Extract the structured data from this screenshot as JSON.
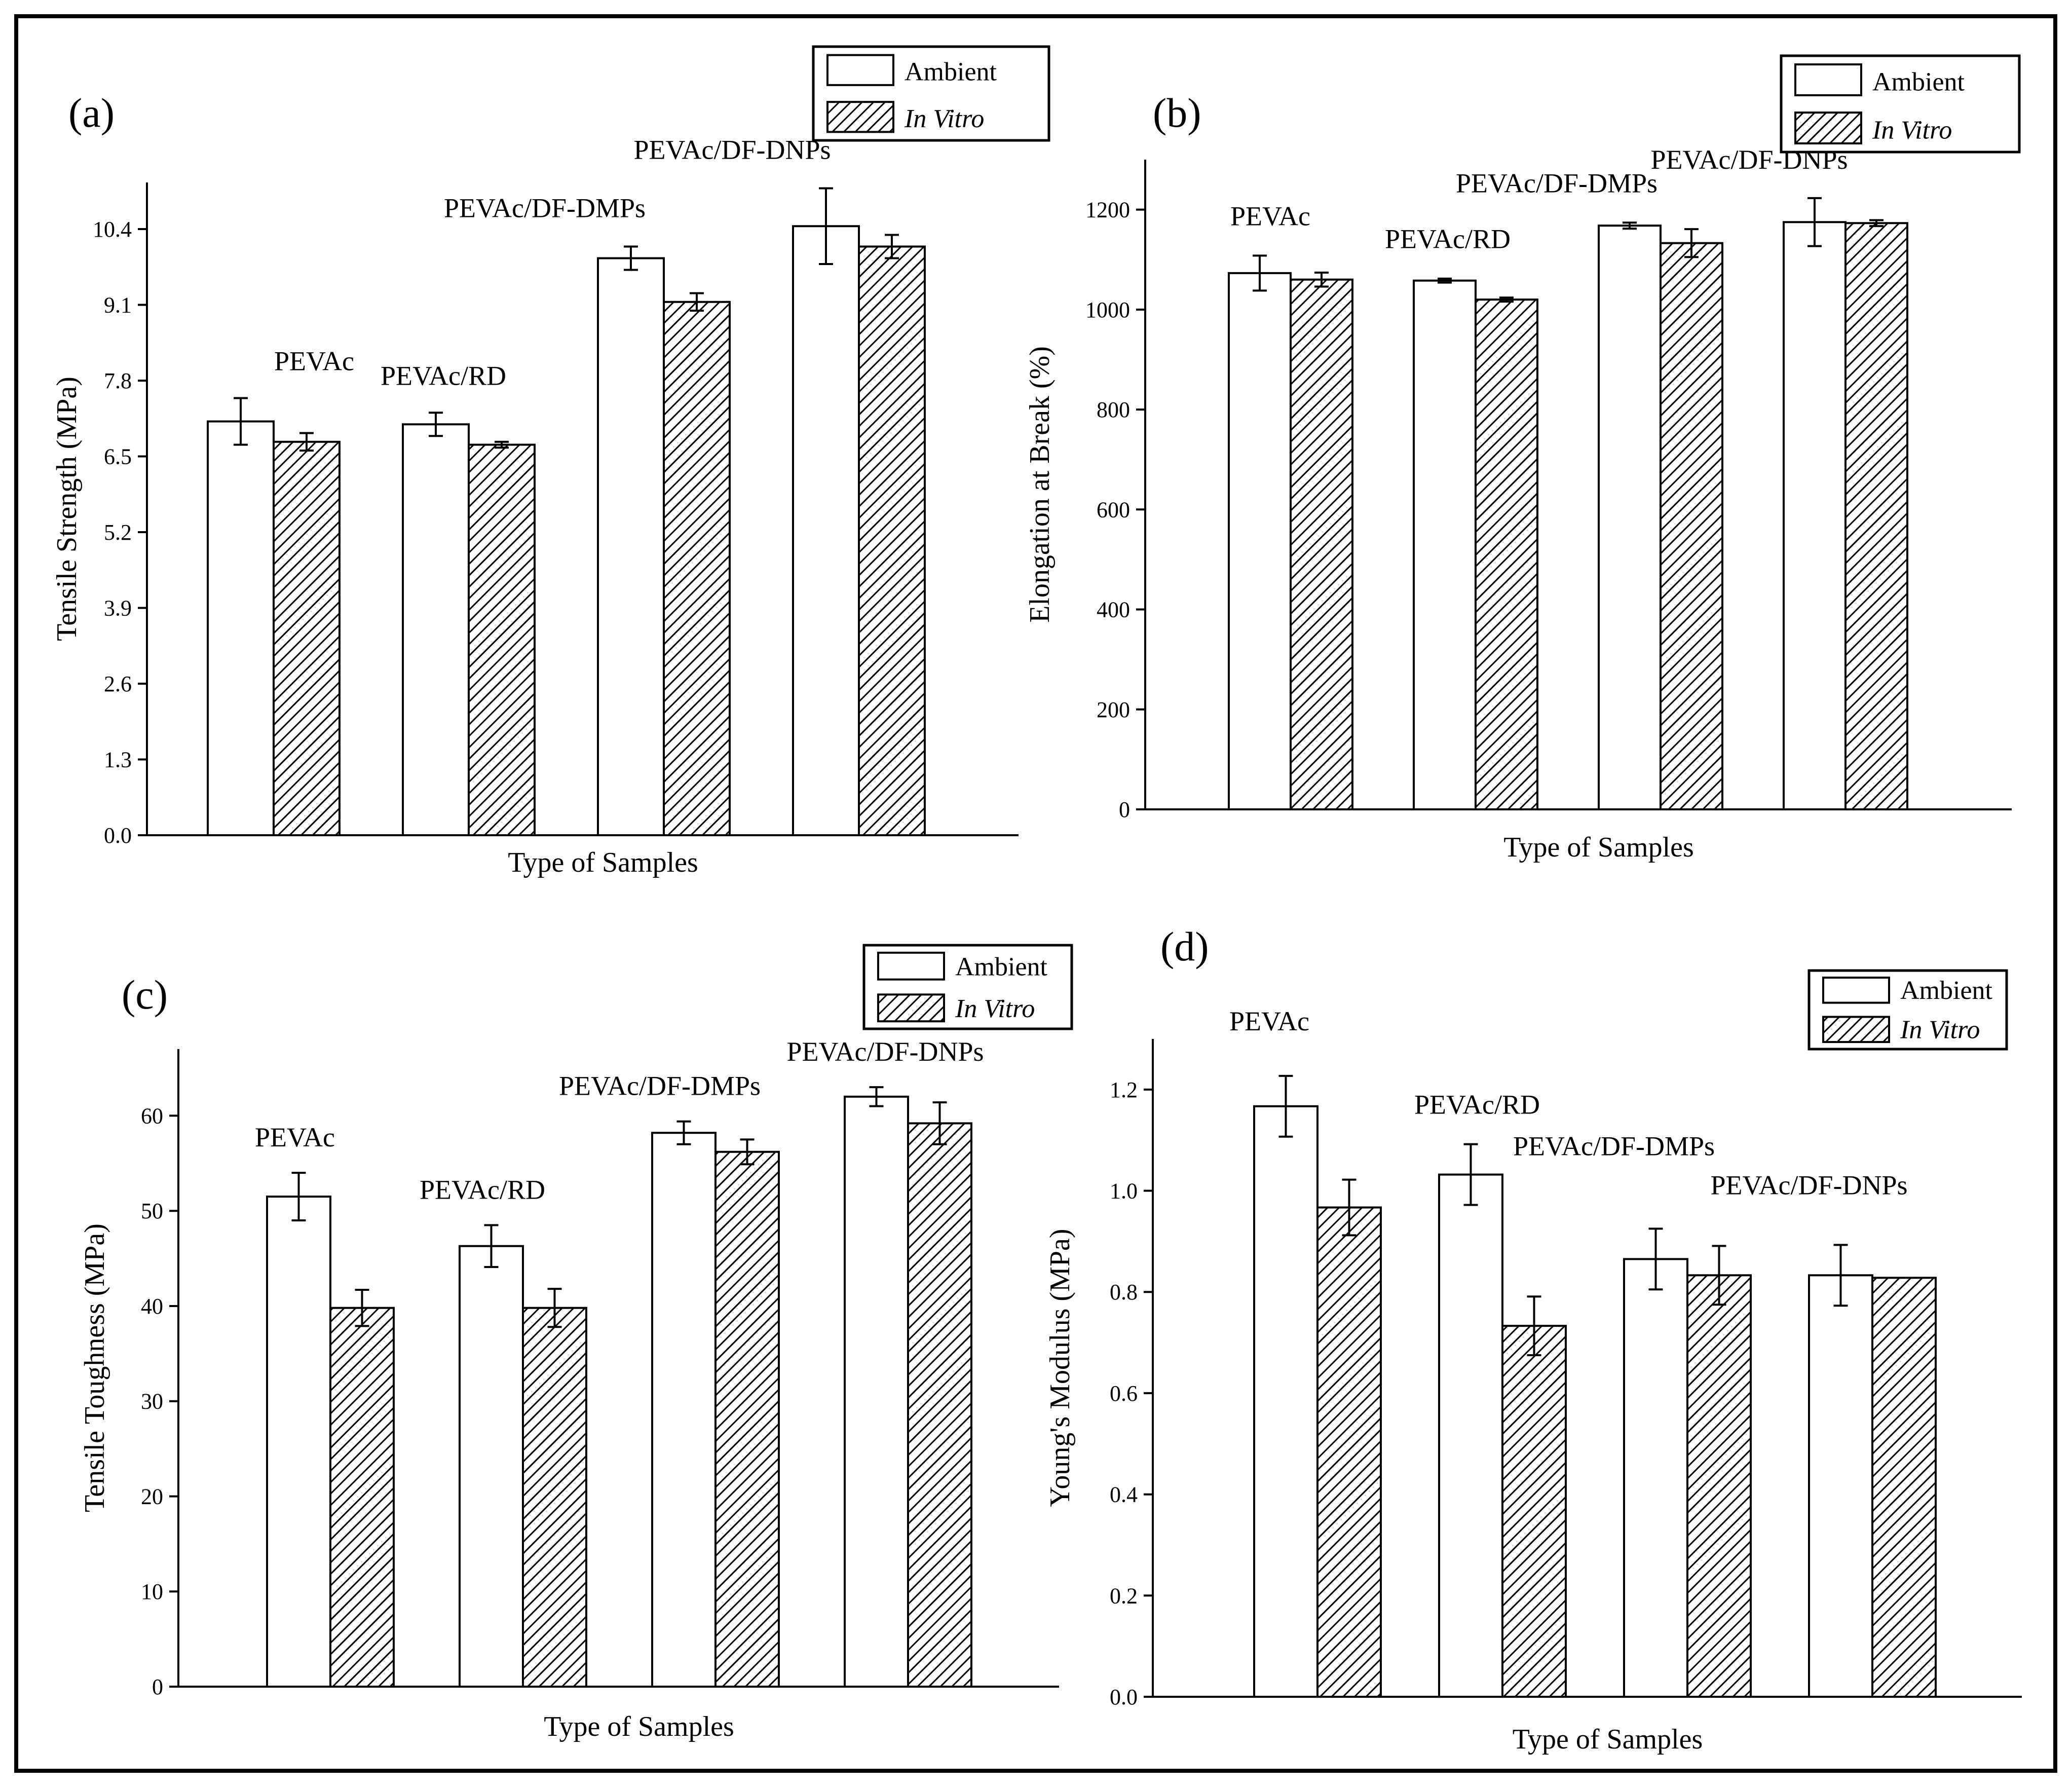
{
  "figure": {
    "border_color": "#000000",
    "legend": {
      "ambient": "Ambient",
      "in_vitro": "In Vitro"
    }
  },
  "chart_data": [
    {
      "panel": "(a)",
      "type": "bar",
      "xlabel": "Type of Samples",
      "ylabel": "Tensile Strength (MPa)",
      "ylim": [
        0,
        11.2
      ],
      "yticks": [
        0.0,
        1.3,
        2.6,
        3.9,
        5.2,
        6.5,
        7.8,
        9.1,
        10.4
      ],
      "ytick_labels": [
        "0.0",
        "1.3",
        "2.6",
        "3.9",
        "5.2",
        "6.5",
        "7.8",
        "9.1",
        "10.4"
      ],
      "categories": [
        "PEVAc",
        "PEVAc/RD",
        "PEVAc/DF-DMPs",
        "PEVAc/DF-DNPs"
      ],
      "legend_position": "top-right",
      "series": [
        {
          "name": "Ambient",
          "values": [
            7.1,
            7.05,
            9.9,
            10.45
          ],
          "errors": [
            0.4,
            0.2,
            0.2,
            0.65
          ]
        },
        {
          "name": "In Vitro",
          "values": [
            6.75,
            6.7,
            9.15,
            10.1
          ],
          "errors": [
            0.15,
            0.05,
            0.15,
            0.2
          ]
        }
      ]
    },
    {
      "panel": "(b)",
      "type": "bar",
      "xlabel": "Type of Samples",
      "ylabel": "Elongation at Break (%)",
      "ylim": [
        0,
        1300
      ],
      "yticks": [
        0,
        200,
        400,
        600,
        800,
        1000,
        1200
      ],
      "ytick_labels": [
        "0",
        "200",
        "400",
        "600",
        "800",
        "1000",
        "1200"
      ],
      "categories": [
        "PEVAc",
        "PEVAc/RD",
        "PEVAc/DF-DMPs",
        "PEVAc/DF-DNPs"
      ],
      "legend_position": "top-right",
      "series": [
        {
          "name": "Ambient",
          "values": [
            1073,
            1058,
            1168,
            1175
          ],
          "errors": [
            35,
            4,
            6,
            48
          ]
        },
        {
          "name": "In Vitro",
          "values": [
            1060,
            1020,
            1133,
            1173
          ],
          "errors": [
            14,
            4,
            28,
            6
          ]
        }
      ]
    },
    {
      "panel": "(c)",
      "type": "bar",
      "xlabel": "Type of Samples",
      "ylabel": "Tensile Toughness (MPa)",
      "ylim": [
        0,
        67
      ],
      "yticks": [
        0,
        10,
        20,
        30,
        40,
        50,
        60
      ],
      "ytick_labels": [
        "0",
        "10",
        "20",
        "30",
        "40",
        "50",
        "60"
      ],
      "categories": [
        "PEVAc",
        "PEVAc/RD",
        "PEVAc/DF-DMPs",
        "PEVAc/DF-DNPs"
      ],
      "legend_position": "top-right",
      "series": [
        {
          "name": "Ambient",
          "values": [
            51.5,
            46.3,
            58.2,
            62.0
          ],
          "errors": [
            2.5,
            2.2,
            1.2,
            1.0
          ]
        },
        {
          "name": "In Vitro",
          "values": [
            39.8,
            39.8,
            56.2,
            59.2
          ],
          "errors": [
            1.9,
            2.0,
            1.3,
            2.2
          ]
        }
      ]
    },
    {
      "panel": "(d)",
      "type": "bar",
      "xlabel": "Type of Samples",
      "ylabel": "Young's Modulus (MPa)",
      "ylim": [
        0,
        1.3
      ],
      "yticks": [
        0.0,
        0.2,
        0.4,
        0.6,
        0.8,
        1.0,
        1.2
      ],
      "ytick_labels": [
        "0.0",
        "0.2",
        "0.4",
        "0.6",
        "0.8",
        "1.0",
        "1.2"
      ],
      "categories": [
        "PEVAc",
        "PEVAc/RD",
        "PEVAc/DF-DMPs",
        "PEVAc/DF-DNPs"
      ],
      "legend_position": "top-right",
      "series": [
        {
          "name": "Ambient",
          "values": [
            1.167,
            1.032,
            0.865,
            0.833
          ],
          "errors": [
            0.06,
            0.06,
            0.06,
            0.06
          ]
        },
        {
          "name": "In Vitro",
          "values": [
            0.967,
            0.733,
            0.833,
            0.828
          ],
          "errors": [
            0.055,
            0.058,
            0.058,
            0.0
          ]
        }
      ]
    }
  ]
}
